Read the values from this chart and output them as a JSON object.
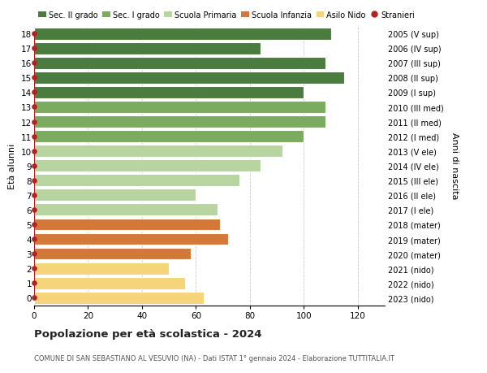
{
  "ages": [
    18,
    17,
    16,
    15,
    14,
    13,
    12,
    11,
    10,
    9,
    8,
    7,
    6,
    5,
    4,
    3,
    2,
    1,
    0
  ],
  "values": [
    110,
    84,
    108,
    115,
    100,
    108,
    108,
    100,
    92,
    84,
    76,
    60,
    68,
    69,
    72,
    58,
    50,
    56,
    63
  ],
  "right_labels": [
    "2005 (V sup)",
    "2006 (IV sup)",
    "2007 (III sup)",
    "2008 (II sup)",
    "2009 (I sup)",
    "2010 (III med)",
    "2011 (II med)",
    "2012 (I med)",
    "2013 (V ele)",
    "2014 (IV ele)",
    "2015 (III ele)",
    "2016 (II ele)",
    "2017 (I ele)",
    "2018 (mater)",
    "2019 (mater)",
    "2020 (mater)",
    "2021 (nido)",
    "2022 (nido)",
    "2023 (nido)"
  ],
  "bar_colors": [
    "#4a7c3f",
    "#4a7c3f",
    "#4a7c3f",
    "#4a7c3f",
    "#4a7c3f",
    "#7aab5e",
    "#7aab5e",
    "#7aab5e",
    "#b8d4a0",
    "#b8d4a0",
    "#b8d4a0",
    "#b8d4a0",
    "#b8d4a0",
    "#d2793a",
    "#d2793a",
    "#d2793a",
    "#f5d47a",
    "#f5d47a",
    "#f5d47a"
  ],
  "legend_labels": [
    "Sec. II grado",
    "Sec. I grado",
    "Scuola Primaria",
    "Scuola Infanzia",
    "Asilo Nido",
    "Stranieri"
  ],
  "legend_colors": [
    "#4a7c3f",
    "#7aab5e",
    "#b8d4a0",
    "#d2793a",
    "#f5d47a",
    "#b22222"
  ],
  "ylabel": "Età alunni",
  "ylabel_right": "Anni di nascita",
  "title": "Popolazione per età scolastica - 2024",
  "subtitle": "COMUNE DI SAN SEBASTIANO AL VESUVIO (NA) - Dati ISTAT 1° gennaio 2024 - Elaborazione TUTTITALIA.IT",
  "xlim": [
    0,
    130
  ],
  "xticks": [
    0,
    20,
    40,
    60,
    80,
    100,
    120
  ],
  "bg_color": "#ffffff",
  "grid_color": "#cccccc",
  "stranieri_color": "#b22222",
  "bar_height": 0.82,
  "bar_edge_color": "#ffffff"
}
